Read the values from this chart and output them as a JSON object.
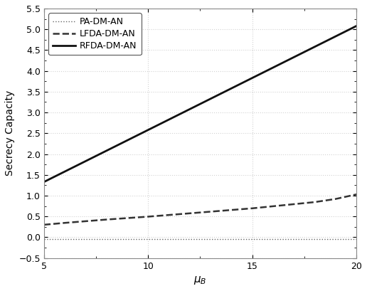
{
  "xlabel": "$\\mu_B$",
  "ylabel": "Secrecy Capacity",
  "xlim": [
    5,
    20
  ],
  "ylim": [
    -0.5,
    5.5
  ],
  "xticks": [
    5,
    10,
    15,
    20
  ],
  "yticks": [
    -0.5,
    0,
    0.5,
    1,
    1.5,
    2,
    2.5,
    3,
    3.5,
    4,
    4.5,
    5,
    5.5
  ],
  "lines": [
    {
      "label": "PA-DM-AN",
      "style": ":",
      "color": "#666666",
      "linewidth": 1.0,
      "x": [
        5,
        20
      ],
      "y": [
        -0.04,
        -0.04
      ]
    },
    {
      "label": "LFDA-DM-AN",
      "style": "--",
      "color": "#333333",
      "linewidth": 1.8,
      "x": [
        5,
        6,
        7,
        8,
        9,
        10,
        11,
        12,
        13,
        14,
        15,
        16,
        17,
        18,
        19,
        20
      ],
      "y": [
        0.3,
        0.345,
        0.385,
        0.425,
        0.46,
        0.495,
        0.535,
        0.575,
        0.615,
        0.655,
        0.695,
        0.745,
        0.795,
        0.845,
        0.92,
        1.03
      ]
    },
    {
      "label": "RFDA-DM-AN",
      "style": "-",
      "color": "#111111",
      "linewidth": 2.0,
      "x": [
        5,
        6,
        7,
        8,
        9,
        10,
        11,
        12,
        13,
        14,
        15,
        16,
        17,
        18,
        19,
        20
      ],
      "y": [
        1.33,
        1.58,
        1.83,
        2.08,
        2.33,
        2.58,
        2.83,
        3.08,
        3.33,
        3.58,
        3.83,
        4.08,
        4.33,
        4.58,
        4.83,
        5.08
      ]
    }
  ],
  "legend_loc": "upper left",
  "background_color": "#ffffff",
  "axes_face_color": "#ffffff",
  "grid_color": "#c8c8c8",
  "grid_alpha": 0.8,
  "font_size": 10,
  "tick_labelsize": 9,
  "xlabel_fontsize": 11,
  "border_color": "#888888"
}
